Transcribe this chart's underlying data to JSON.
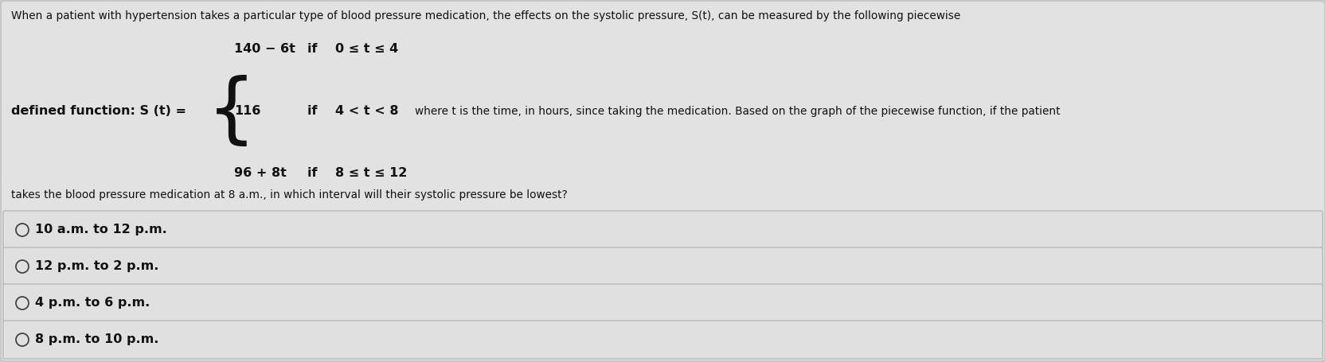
{
  "bg_color": "#c8c8c8",
  "panel_color": "#e2e2e2",
  "option_box_color": "#e0e0e0",
  "option_border_color": "#b8b8b8",
  "text_color": "#111111",
  "radio_color": "#444444",
  "header_line1": "When a patient with hypertension takes a particular type of blood pressure medication, the effects on the systolic pressure, S(t), can be measured by the following piecewise",
  "defined_label": "defined function: S (t) =",
  "pw1_expr": "140 − 6t",
  "pw1_cond": "if    0 ≤ t ≤ 4",
  "pw2_expr": "116",
  "pw2_cond": "if    4 < t < 8",
  "pw2_extra": "where t is the time, in hours, since taking the medication. Based on the graph of the piecewise function, if the patient",
  "pw3_expr": "96 + 8t",
  "pw3_cond": "if    8 ≤ t ≤ 12",
  "footer": "takes the blood pressure medication at 8 a.m., in which interval will their systolic pressure be lowest?",
  "options": [
    "10 a.m. to 12 p.m.",
    "12 p.m. to 2 p.m.",
    "4 p.m. to 6 p.m.",
    "8 p.m. to 10 p.m."
  ],
  "fs_header": 9.8,
  "fs_bold": 11.5,
  "fs_options": 11.5,
  "fs_brace": 70
}
